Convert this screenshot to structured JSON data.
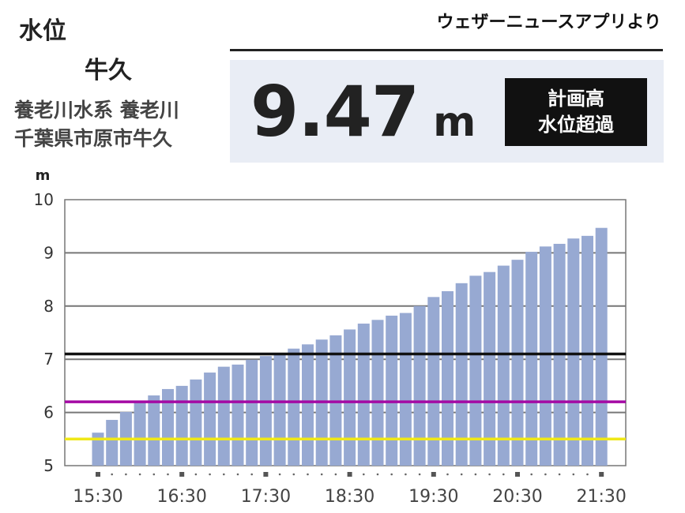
{
  "header": {
    "title": "水位",
    "station": "牛久",
    "river_line1": "養老川水系 養老川",
    "river_line2": "千葉県市原市牛久",
    "source": "ウェザーニュースアプリより"
  },
  "panel": {
    "level_value": "9.47",
    "level_unit": "m",
    "status_line1": "計画高",
    "status_line2": "水位超過"
  },
  "chart_data": {
    "type": "bar",
    "ylabel": "m",
    "ylim": [
      5,
      10
    ],
    "yticks": [
      5,
      6,
      7,
      8,
      9,
      10
    ],
    "x_tick_labels": [
      "15:30",
      "16:30",
      "17:30",
      "18:30",
      "19:30",
      "20:30",
      "21:30"
    ],
    "x_interval_minutes": 10,
    "categories": [
      "15:30",
      "15:40",
      "15:50",
      "16:00",
      "16:10",
      "16:20",
      "16:30",
      "16:40",
      "16:50",
      "17:00",
      "17:10",
      "17:20",
      "17:30",
      "17:40",
      "17:50",
      "18:00",
      "18:10",
      "18:20",
      "18:30",
      "18:40",
      "18:50",
      "19:00",
      "19:10",
      "19:20",
      "19:30",
      "19:40",
      "19:50",
      "20:00",
      "20:10",
      "20:20",
      "20:30",
      "20:40",
      "20:50",
      "21:00",
      "21:10",
      "21:20",
      "21:30"
    ],
    "values": [
      5.62,
      5.86,
      6.01,
      6.18,
      6.32,
      6.44,
      6.5,
      6.62,
      6.75,
      6.86,
      6.9,
      6.99,
      7.06,
      7.12,
      7.2,
      7.28,
      7.37,
      7.45,
      7.56,
      7.67,
      7.74,
      7.82,
      7.87,
      8.0,
      8.17,
      8.28,
      8.43,
      8.57,
      8.64,
      8.76,
      8.87,
      9.02,
      9.12,
      9.17,
      9.27,
      9.32,
      9.47
    ],
    "bar_color": "#97a9d2",
    "threshold_lines": [
      {
        "value": 7.1,
        "color": "#111111"
      },
      {
        "value": 6.2,
        "color": "#a40aa4"
      },
      {
        "value": 5.5,
        "color": "#f0e817"
      }
    ],
    "grid": true
  }
}
